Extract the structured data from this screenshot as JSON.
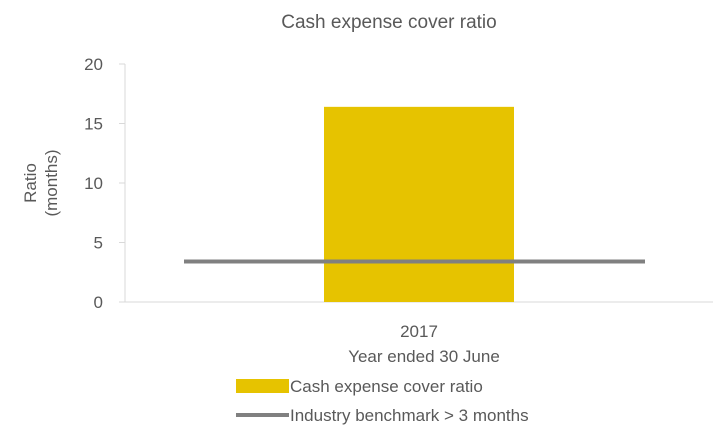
{
  "chart_data": {
    "type": "bar",
    "title": "Cash expense cover ratio",
    "categories": [
      "2017"
    ],
    "xlabel": "Year ended 30 June",
    "ylabel": [
      "Ratio",
      "(months)"
    ],
    "ylim": [
      0,
      20
    ],
    "yticks": [
      "0",
      "5",
      "10",
      "15",
      "20"
    ],
    "series": [
      {
        "name": "Cash expense cover ratio",
        "type": "bar",
        "values": [
          16.4
        ],
        "color": "#E6C300"
      }
    ],
    "benchmark": {
      "name": "Industry benchmark > 3 months",
      "type": "line",
      "value": 3.4,
      "color": "#808080"
    },
    "grid": false,
    "legend": "bottom"
  }
}
